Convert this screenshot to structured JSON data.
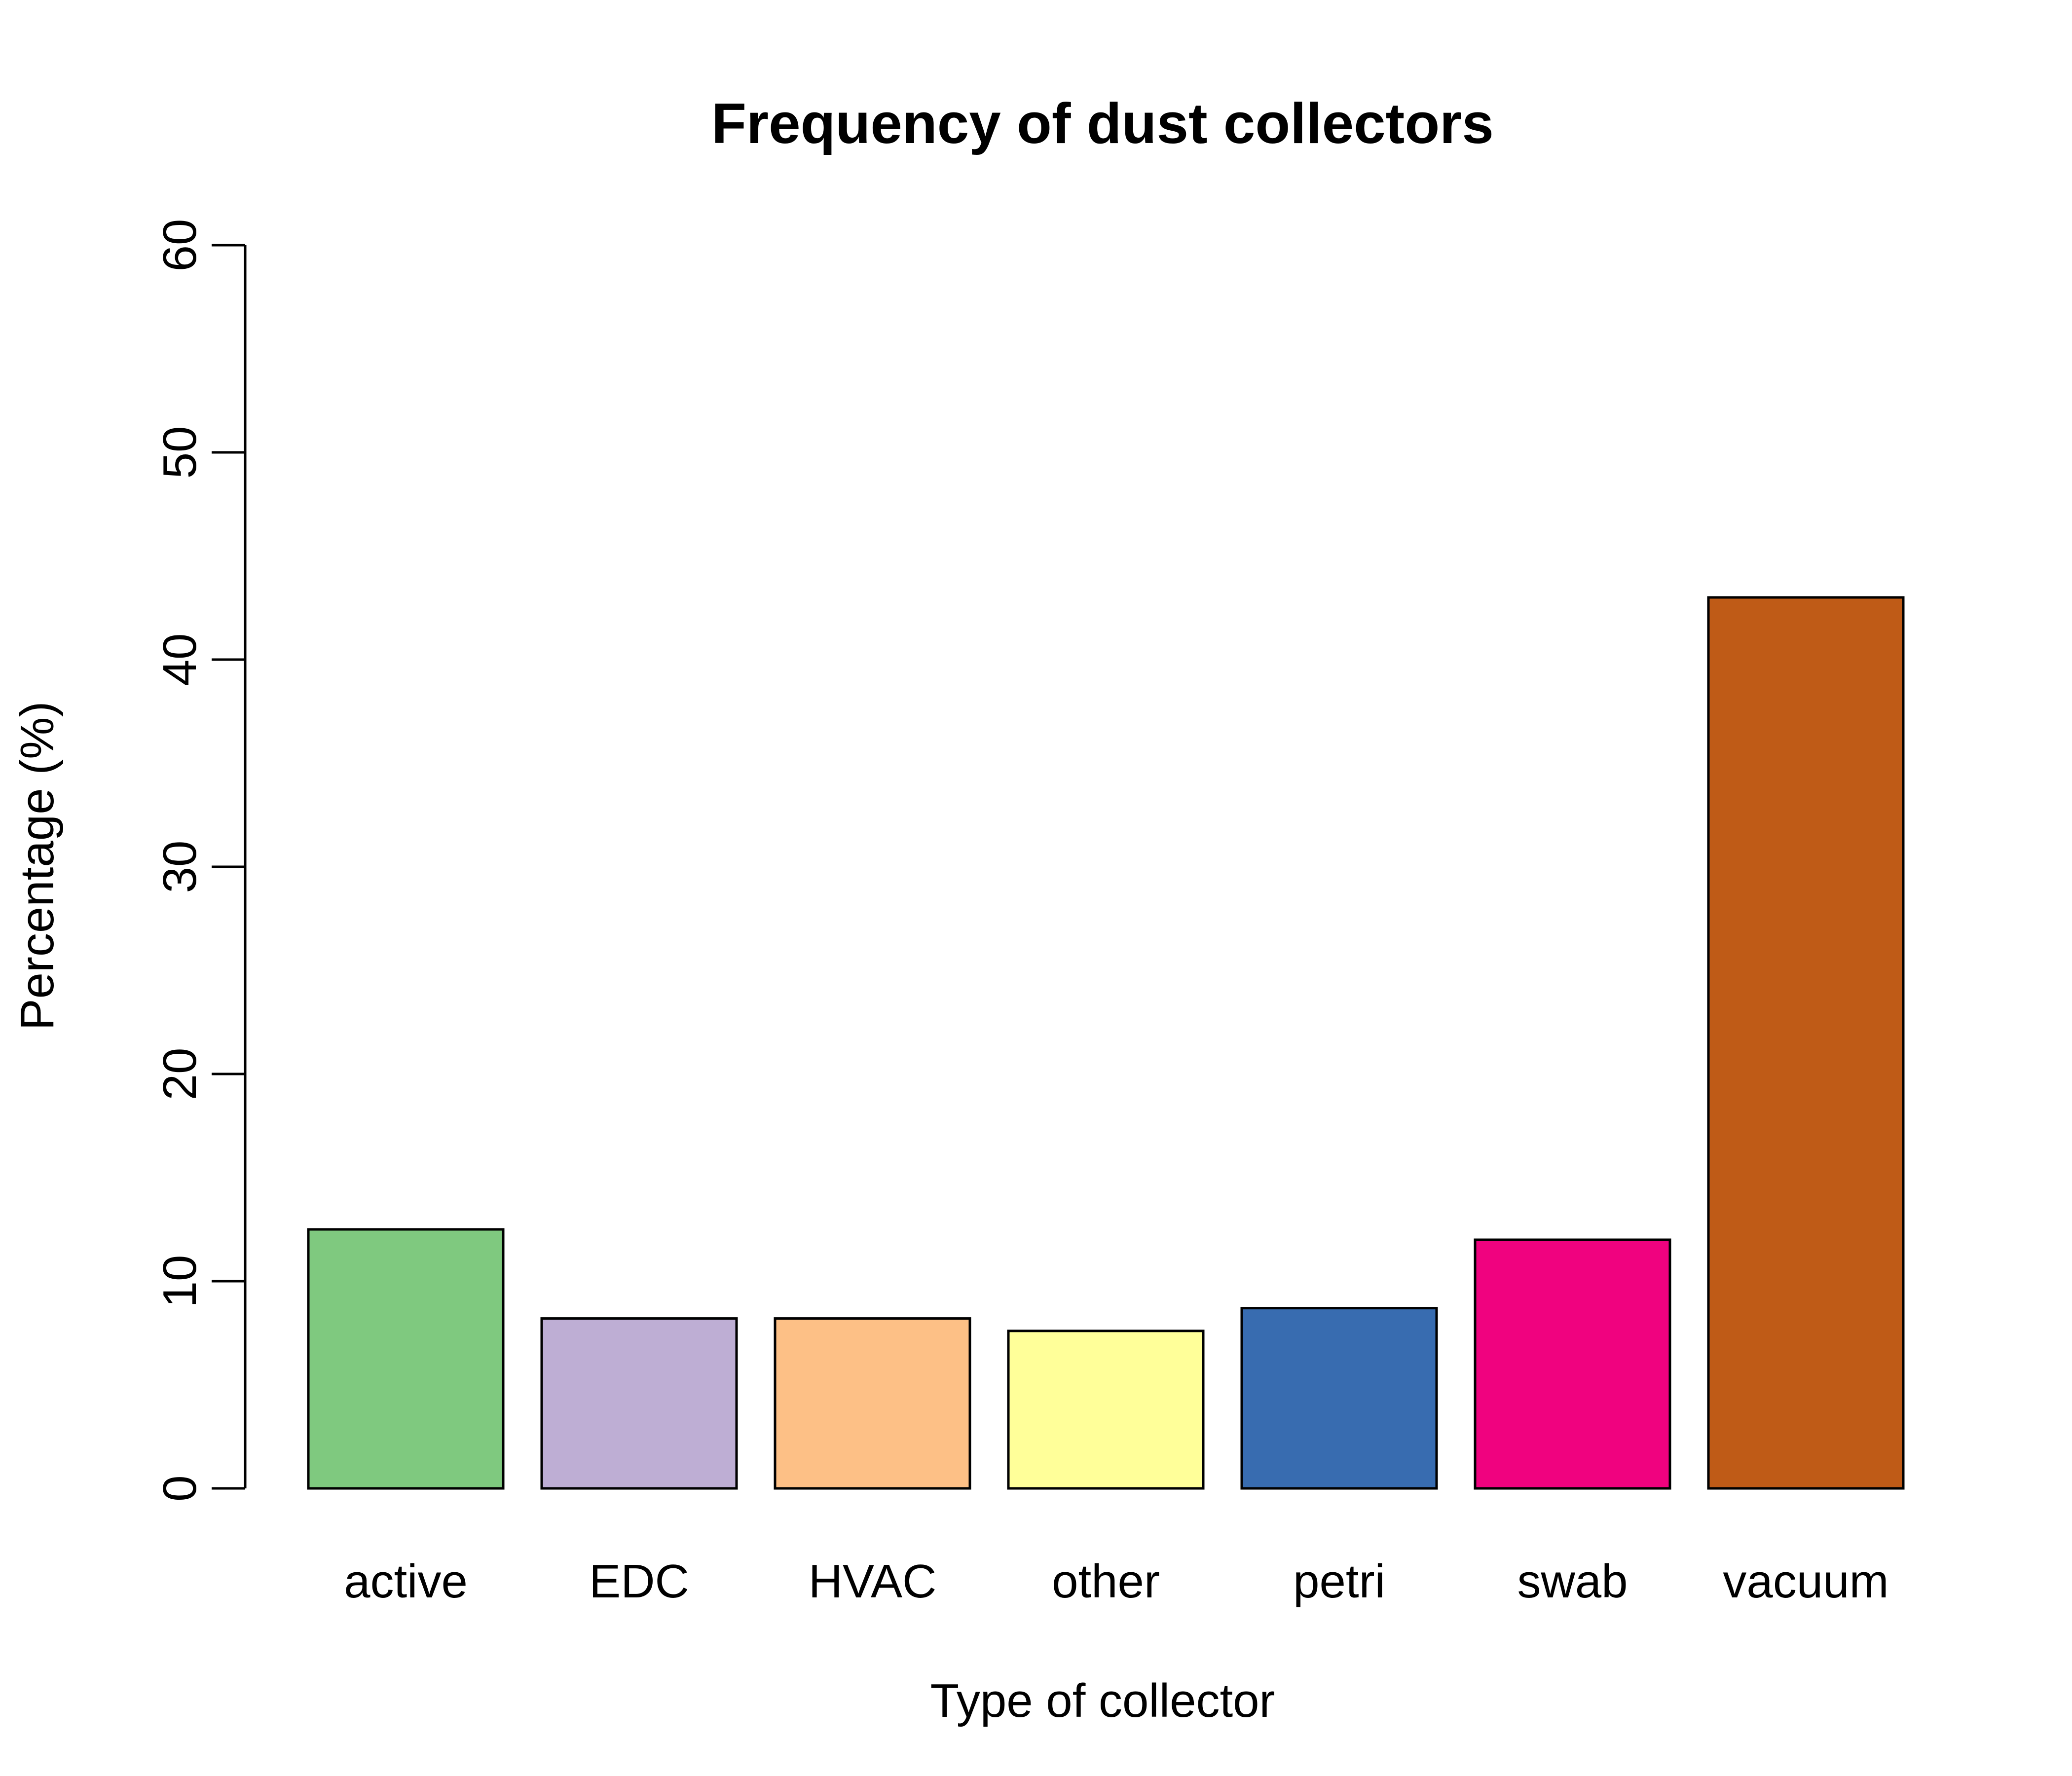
{
  "chart_data": {
    "type": "bar",
    "title": "Frequency of dust collectors",
    "xlabel": "Type of collector",
    "ylabel": "Percentage (%)",
    "categories": [
      "active",
      "EDC",
      "HVAC",
      "other",
      "petri",
      "swab",
      "vacuum"
    ],
    "values": [
      12.5,
      8.2,
      8.2,
      7.6,
      8.7,
      12.0,
      43.0
    ],
    "colors": [
      "#7fc97f",
      "#beaed4",
      "#fdc086",
      "#ffff99",
      "#386cb0",
      "#f0027f",
      "#bf5b17"
    ],
    "ylim": [
      0,
      60
    ],
    "yticks": [
      "0",
      "10",
      "20",
      "30",
      "40",
      "50",
      "60"
    ],
    "grid": false,
    "legend": "none"
  }
}
